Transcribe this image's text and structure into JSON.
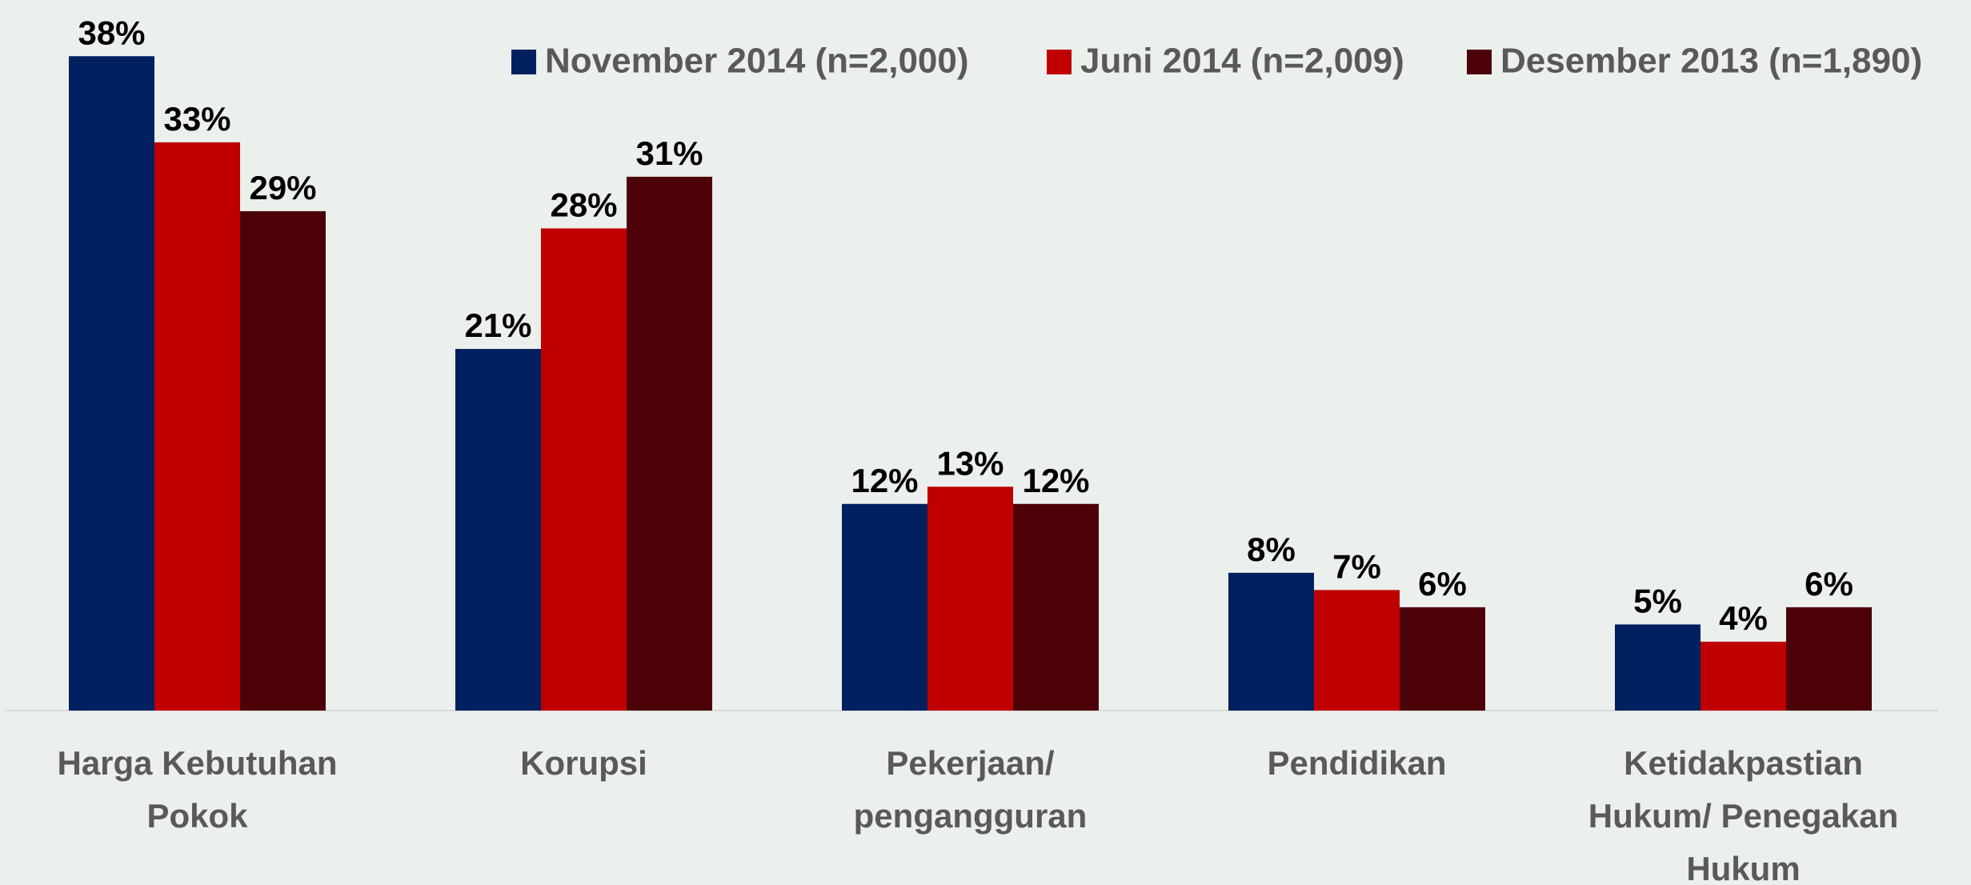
{
  "chart_data": {
    "type": "bar",
    "categories": [
      [
        "Harga Kebutuhan",
        "Pokok"
      ],
      [
        "Korupsi"
      ],
      [
        "Pekerjaan/",
        "pengangguran"
      ],
      [
        "Pendidikan"
      ],
      [
        "Ketidakpastian",
        "Hukum/ Penegakan",
        "Hukum"
      ]
    ],
    "series": [
      {
        "name": "November 2014 (n=2,000)",
        "color": "#002060",
        "values": [
          38,
          21,
          12,
          8,
          5
        ],
        "value_labels": [
          "38%",
          "21%",
          "12%",
          "8%",
          "5%"
        ]
      },
      {
        "name": "Juni 2014 (n=2,009)",
        "color": "#c00000",
        "values": [
          33,
          28,
          13,
          7,
          4
        ],
        "value_labels": [
          "33%",
          "28%",
          "13%",
          "7%",
          "4%"
        ]
      },
      {
        "name": "Desember 2013 (n=1,890)",
        "color": "#4c0007",
        "values": [
          29,
          31,
          12,
          6,
          6
        ],
        "value_labels": [
          "29%",
          "31%",
          "12%",
          "6%",
          "6%"
        ]
      }
    ],
    "legend": "top-right"
  }
}
